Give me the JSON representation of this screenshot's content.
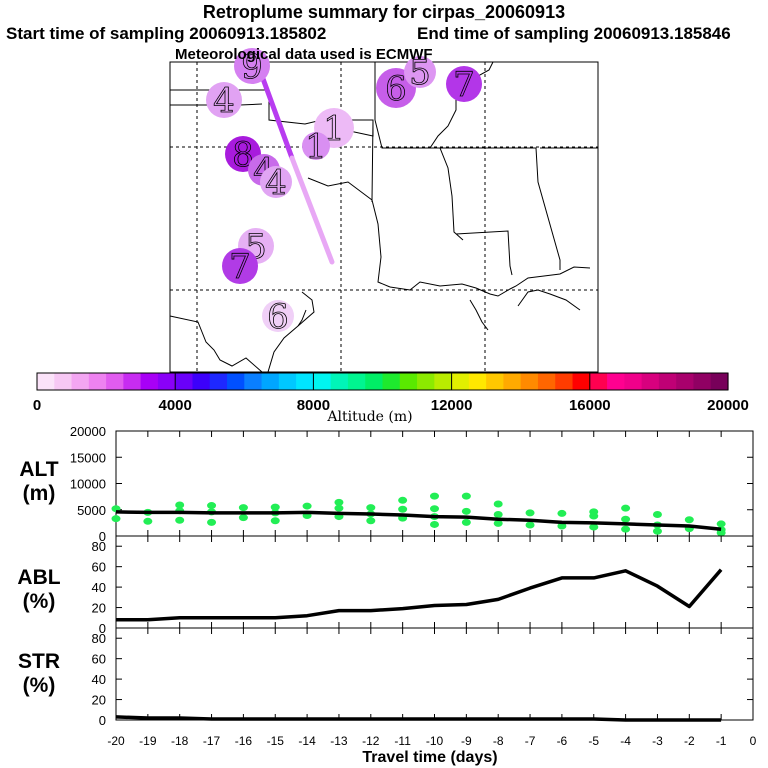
{
  "header": {
    "title": "Retroplume summary for cirpas_20060913",
    "start_label": "Start time of sampling 20060913.185802",
    "end_label": "End time of sampling 20060913.185846",
    "met_label": "Meteorological data used is ECMWF"
  },
  "colorbar": {
    "title": "Altitude (m)",
    "tick_labels": [
      "0",
      "4000",
      "8000",
      "12000",
      "16000",
      "20000"
    ],
    "colors": [
      "#fbe3f9",
      "#f7c8f4",
      "#f3a6f2",
      "#ee82f0",
      "#e15cef",
      "#c72cf1",
      "#a800f6",
      "#8a00f8",
      "#6a00fa",
      "#3c00fb",
      "#1e28ff",
      "#0050ff",
      "#0a7fff",
      "#00a6ff",
      "#00c8ff",
      "#00e5ff",
      "#00f5f0",
      "#00f5b8",
      "#00f590",
      "#00ee66",
      "#1eea2e",
      "#5aea00",
      "#8cea00",
      "#b9ec00",
      "#e2ef00",
      "#ffe800",
      "#ffc800",
      "#ffaa00",
      "#ff8a00",
      "#ff6600",
      "#ff3c00",
      "#ff0000",
      "#ff0050",
      "#ff0090",
      "#f0008a",
      "#d8007e",
      "#bf0075",
      "#a8006c",
      "#900063",
      "#78005a"
    ]
  },
  "map": {
    "markers": [
      {
        "label": "9",
        "color": "#d580f1",
        "size": 18
      },
      {
        "label": "6",
        "color": "#c65ee9",
        "size": 20
      },
      {
        "label": "5",
        "color": "#dd96f2",
        "size": 16
      },
      {
        "label": "7",
        "color": "#b336e8",
        "size": 18
      },
      {
        "label": "4",
        "color": "#e1a2f3",
        "size": 18
      },
      {
        "label": "1",
        "color": "#edbaf6",
        "size": 20
      },
      {
        "label": "1",
        "color": "#d98ff2",
        "size": 14
      },
      {
        "label": "8",
        "color": "#a81bdd",
        "size": 18
      },
      {
        "label": "4",
        "color": "#c86aea",
        "size": 16
      },
      {
        "label": "4",
        "color": "#e1a5f3",
        "size": 16
      },
      {
        "label": "5",
        "color": "#e6b0f4",
        "size": 18
      },
      {
        "label": "7",
        "color": "#b13be6",
        "size": 18
      },
      {
        "label": "6",
        "color": "#f0d0f7",
        "size": 16
      }
    ]
  },
  "chart_data": [
    {
      "type": "line+scatter",
      "panel": "ALT",
      "ylabel": [
        "ALT",
        "(m)"
      ],
      "ylim": [
        0,
        20000
      ],
      "yticks": [
        0,
        5000,
        10000,
        15000,
        20000
      ],
      "x": [
        -20,
        -19,
        -18,
        -17,
        -16,
        -15,
        -14,
        -13,
        -12,
        -11,
        -10,
        -9,
        -8,
        -7,
        -6,
        -5,
        -4,
        -3,
        -2,
        -1
      ],
      "values": [
        4600,
        4500,
        4500,
        4400,
        4400,
        4400,
        4500,
        4300,
        4200,
        4000,
        3700,
        3600,
        3200,
        3000,
        2600,
        2500,
        2300,
        2100,
        1900,
        1300
      ],
      "scatter_color": "#22ee55",
      "scatter": [
        [
          -20,
          5200
        ],
        [
          -20,
          3300
        ],
        [
          -19,
          4500
        ],
        [
          -19,
          2800
        ],
        [
          -18,
          5900
        ],
        [
          -18,
          4800
        ],
        [
          -18,
          3000
        ],
        [
          -17,
          5800
        ],
        [
          -17,
          4600
        ],
        [
          -17,
          2600
        ],
        [
          -16,
          5400
        ],
        [
          -16,
          3500
        ],
        [
          -15,
          5500
        ],
        [
          -15,
          4400
        ],
        [
          -15,
          2900
        ],
        [
          -14,
          5700
        ],
        [
          -14,
          3900
        ],
        [
          -13,
          6400
        ],
        [
          -13,
          5300
        ],
        [
          -13,
          3700
        ],
        [
          -12,
          5400
        ],
        [
          -12,
          4200
        ],
        [
          -12,
          2900
        ],
        [
          -11,
          6800
        ],
        [
          -11,
          5100
        ],
        [
          -11,
          3400
        ],
        [
          -10,
          7600
        ],
        [
          -10,
          5200
        ],
        [
          -10,
          3700
        ],
        [
          -10,
          2200
        ],
        [
          -9,
          7600
        ],
        [
          -9,
          4700
        ],
        [
          -9,
          2600
        ],
        [
          -8,
          6100
        ],
        [
          -8,
          4100
        ],
        [
          -8,
          2400
        ],
        [
          -7,
          4400
        ],
        [
          -7,
          2100
        ],
        [
          -6,
          4300
        ],
        [
          -6,
          1900
        ],
        [
          -5,
          4600
        ],
        [
          -5,
          3800
        ],
        [
          -5,
          1700
        ],
        [
          -4,
          5300
        ],
        [
          -4,
          3200
        ],
        [
          -4,
          1300
        ],
        [
          -3,
          4100
        ],
        [
          -3,
          2100
        ],
        [
          -3,
          900
        ],
        [
          -2,
          3100
        ],
        [
          -2,
          1400
        ],
        [
          -1,
          2300
        ],
        [
          -1,
          1200
        ],
        [
          -1,
          600
        ]
      ]
    },
    {
      "type": "line",
      "panel": "ABL",
      "ylabel": [
        "ABL",
        "(%)"
      ],
      "ylim": [
        0,
        90
      ],
      "yticks": [
        0,
        20,
        40,
        60,
        80
      ],
      "x": [
        -20,
        -19,
        -18,
        -17,
        -16,
        -15,
        -14,
        -13,
        -12,
        -11,
        -10,
        -9,
        -8,
        -7,
        -6,
        -5,
        -4,
        -3,
        -2,
        -1
      ],
      "values": [
        8,
        8,
        10,
        10,
        10,
        10,
        12,
        17,
        17,
        19,
        22,
        23,
        28,
        39,
        49,
        49,
        56,
        41,
        21,
        57
      ]
    },
    {
      "type": "line",
      "panel": "STR",
      "ylabel": [
        "STR",
        "(%)"
      ],
      "ylim": [
        0,
        90
      ],
      "yticks": [
        0,
        20,
        40,
        60,
        80
      ],
      "x": [
        -20,
        -19,
        -18,
        -17,
        -16,
        -15,
        -14,
        -13,
        -12,
        -11,
        -10,
        -9,
        -8,
        -7,
        -6,
        -5,
        -4,
        -3,
        -2,
        -1
      ],
      "values": [
        3,
        2,
        2,
        1,
        1,
        1,
        1,
        1,
        1,
        1,
        1,
        1,
        1,
        1,
        1,
        1,
        0,
        0,
        0,
        0
      ],
      "xlabel": "Travel time (days)",
      "xtick_labels": [
        "-20",
        "-19",
        "-18",
        "-17",
        "-16",
        "-15",
        "-14",
        "-13",
        "-12",
        "-11",
        "-10",
        "-9",
        "-8",
        "-7",
        "-6",
        "-5",
        "-4",
        "-3",
        "-2",
        "-1",
        "0"
      ]
    }
  ]
}
